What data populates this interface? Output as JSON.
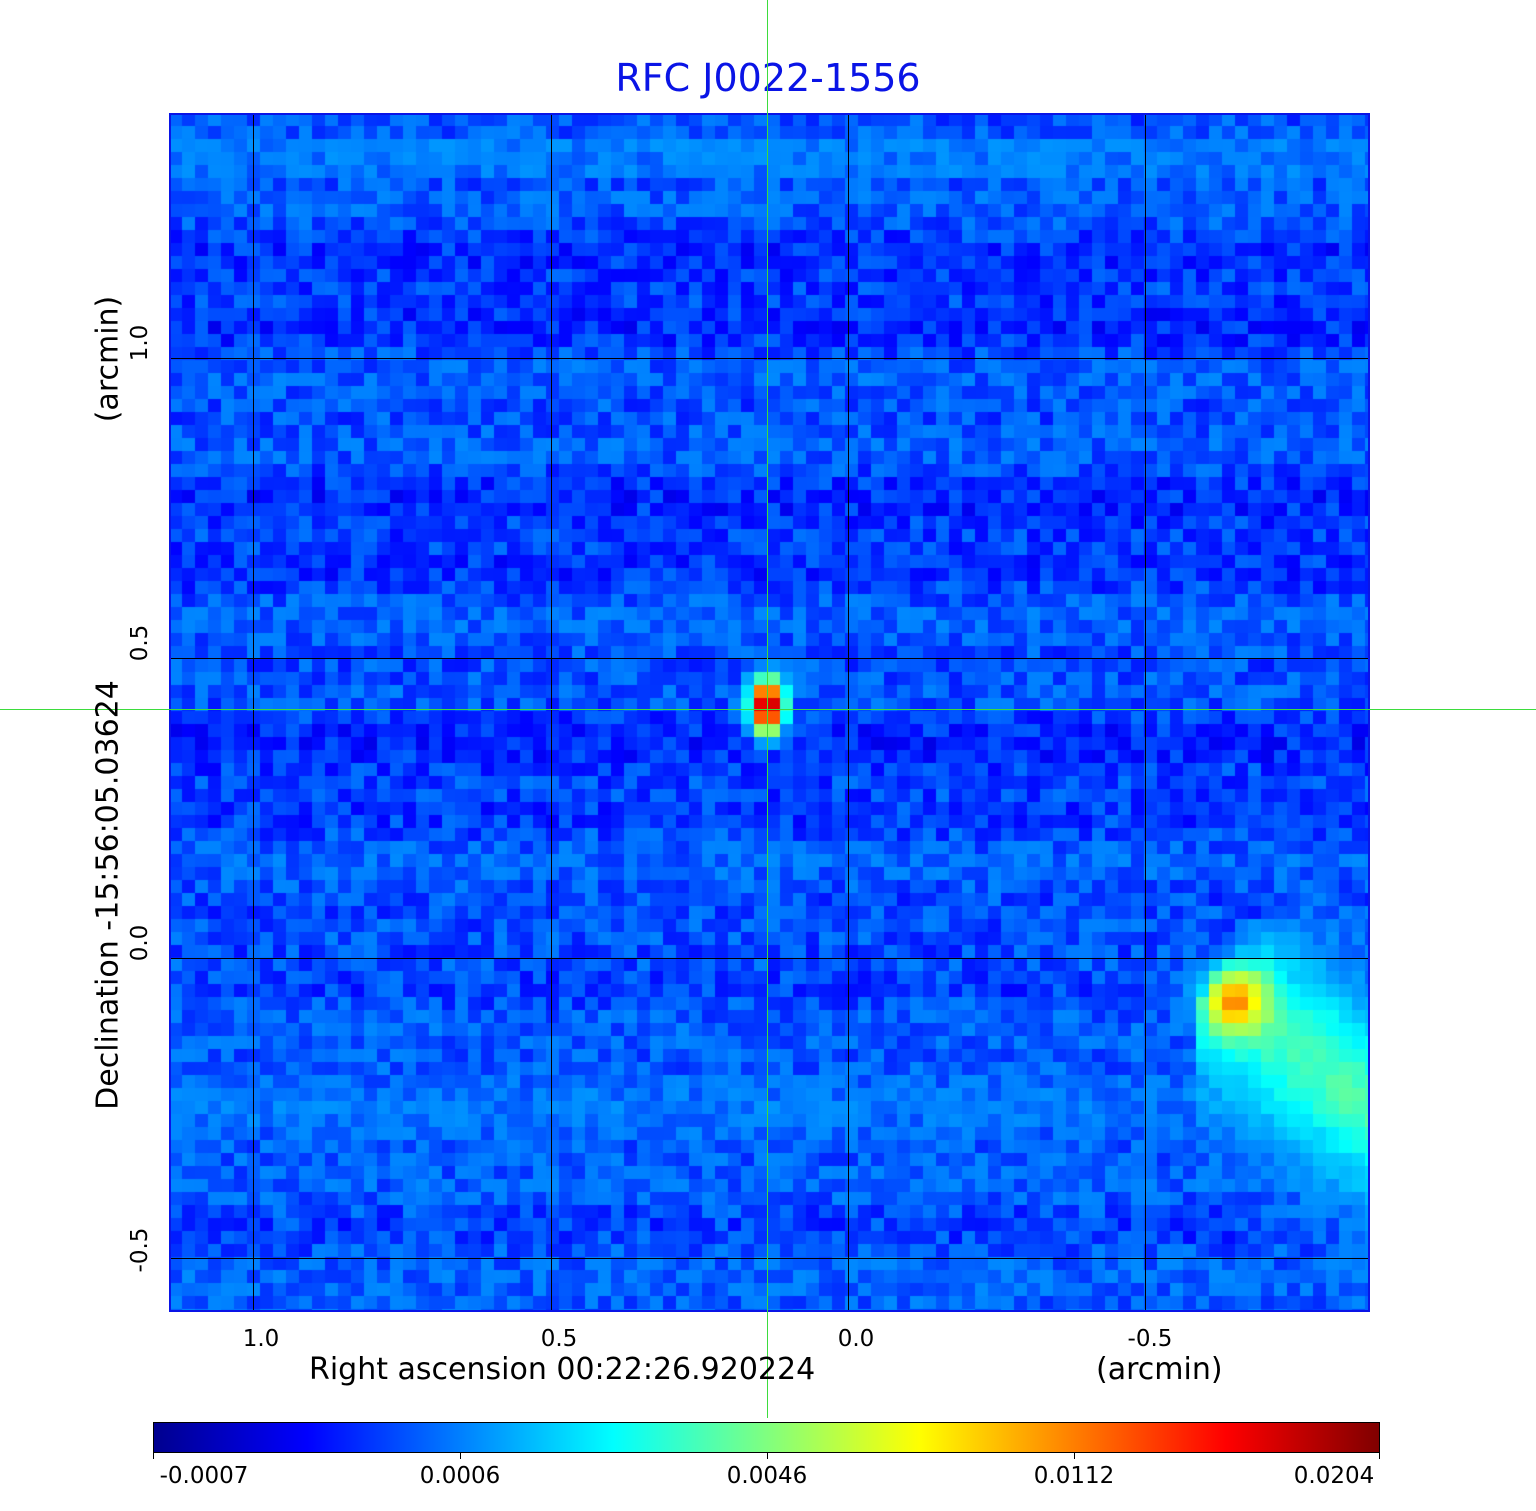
{
  "chart_data": {
    "type": "heatmap",
    "title": "RFC J0022-1556",
    "xlabel": "Right ascension  00:22:26.920224",
    "xunit": "(arcmin)",
    "ylabel": "Declination  -15:56:05.03624",
    "yunit": "(arcmin)",
    "xlim": [
      1.14,
      -0.88
    ],
    "ylim": [
      -0.59,
      1.41
    ],
    "xticks": [
      "1.0",
      "0.5",
      "0.0",
      "-0.5"
    ],
    "xtick_values": [
      1.0,
      0.5,
      0.0,
      -0.5
    ],
    "yticks": [
      "1.0",
      "0.5",
      "0.0",
      "-0.5"
    ],
    "ytick_values": [
      1.0,
      0.5,
      0.0,
      -0.5
    ],
    "grid": true,
    "colormap": "jet",
    "colorbar": {
      "placement": "bottom",
      "ticks": [
        "-0.0007",
        "0.0006",
        "0.0046",
        "0.0112",
        "0.0204"
      ],
      "tick_values": [
        -0.0007,
        0.0006,
        0.0046,
        0.0112,
        0.0204
      ]
    },
    "crosshair": {
      "ra": 0.136,
      "dec": 0.415,
      "color": "#3ddc3d"
    },
    "sources": [
      {
        "name": "central compact source",
        "ra": 0.136,
        "dec": 0.42,
        "peak": 0.0204
      },
      {
        "name": "extended source",
        "ra": -0.65,
        "dec": -0.07,
        "peak": 0.0112
      }
    ],
    "background_level": 0.0003
  },
  "colors": {
    "title": "#0a14e6",
    "frame": "#0a14e6",
    "crosshair": "#3ddc3d"
  }
}
